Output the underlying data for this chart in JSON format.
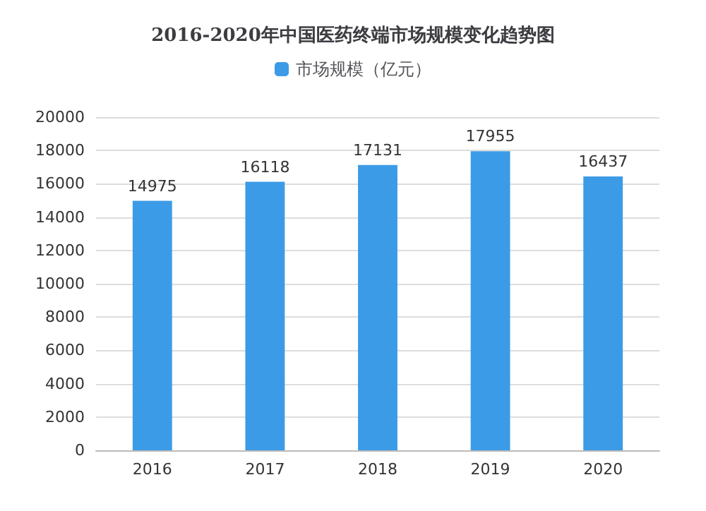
{
  "chart_data": {
    "type": "bar",
    "title": "2016-2020年中国医药终端市场规模变化趋势图",
    "categories": [
      "2016",
      "2017",
      "2018",
      "2019",
      "2020"
    ],
    "series": [
      {
        "name": "市场规模（亿元）",
        "color": "#3c9be6",
        "values": [
          14975,
          16118,
          17131,
          17955,
          16437
        ]
      }
    ],
    "ylim": [
      0,
      20000
    ],
    "yticks": [
      0,
      2000,
      4000,
      6000,
      8000,
      10000,
      12000,
      14000,
      16000,
      18000,
      20000
    ],
    "grid": "y",
    "legend": "top",
    "data_labels": true
  }
}
